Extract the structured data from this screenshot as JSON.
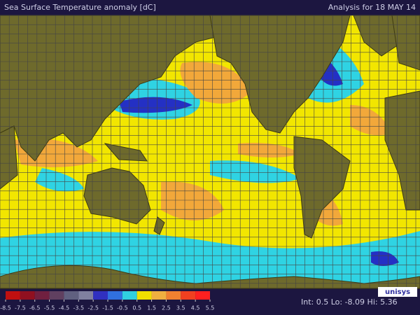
{
  "header": {
    "title": "Sea Surface Temperature anomaly [dC]",
    "analysis": "Analysis for 18 MAY 14"
  },
  "colorbar": {
    "ticks": [
      -8.5,
      -7.5,
      -6.5,
      -5.5,
      -4.5,
      -3.5,
      -2.5,
      -1.5,
      -0.5,
      0.5,
      1.5,
      2.5,
      3.5,
      4.5,
      5.5
    ],
    "colors": [
      "#c01010",
      "#901020",
      "#702040",
      "#604060",
      "#606080",
      "#8080a0",
      "#3030c0",
      "#3070e0",
      "#30d0e0",
      "#f0e000",
      "#f0b040",
      "#f08030",
      "#f04020",
      "#ff2020"
    ]
  },
  "footer": {
    "stats": "Int: 0.5  Lo: -8.09  Hi: 5.36",
    "logo": "unisys"
  }
}
